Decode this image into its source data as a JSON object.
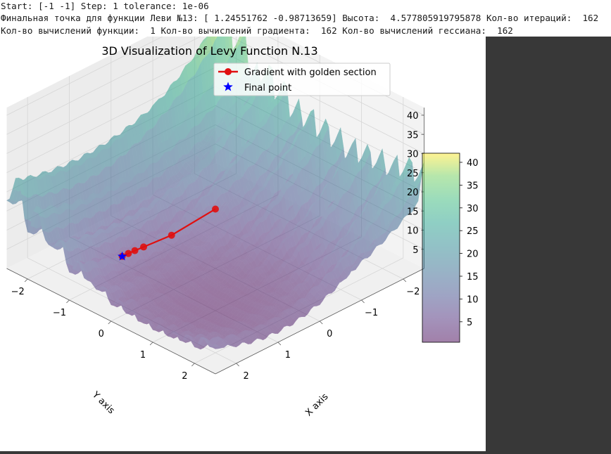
{
  "console": {
    "line1": "Start: [-1 -1] Step: 1 tolerance: 1e-06",
    "line2": "Финальная точка для функции Леви №13: [ 1.24551762 -0.98713659] Высота:  4.577805919795878 Кол-во итераций:  162",
    "line3": "Кол-во вычислений функции:  1 Кол-во вычислений градиента:  162 Кол-во вычислений гессиана:  162"
  },
  "chart_data": {
    "type": "surface3d",
    "title": "3D Visualization of Levy Function N.13",
    "xlabel": "X axis",
    "ylabel": "Y axis",
    "zlabel": "",
    "xlim": [
      -2.5,
      2.5
    ],
    "ylim": [
      -2.5,
      2.5
    ],
    "zlim": [
      0,
      42
    ],
    "x_ticks": [
      "−2",
      "−1",
      "0",
      "1",
      "2"
    ],
    "y_ticks": [
      "−2",
      "−1",
      "0",
      "1",
      "2"
    ],
    "z_ticks": [
      "5",
      "10",
      "15",
      "20",
      "25",
      "30",
      "35",
      "40"
    ],
    "colormap": "viridis",
    "surface_alpha": 0.5,
    "colorbar": {
      "ticks": [
        "5",
        "10",
        "15",
        "20",
        "25",
        "30",
        "35",
        "40"
      ],
      "range": [
        0.5,
        42
      ]
    },
    "legend": {
      "placement": "upper center",
      "entries": [
        {
          "label": "Gradient with golden section",
          "color": "#e01010",
          "marker": "circle"
        },
        {
          "label": "Final point",
          "color": "#0000ff",
          "marker": "star"
        }
      ]
    },
    "path": {
      "name": "Gradient with golden section",
      "color": "#e01010",
      "points": [
        {
          "x": -1.0,
          "y": -1.0,
          "z": 4.5
        },
        {
          "x": 0.1,
          "y": -0.95,
          "z": 4.0
        },
        {
          "x": 0.75,
          "y": -0.97,
          "z": 4.4
        },
        {
          "x": 0.95,
          "y": -0.98,
          "z": 4.5
        },
        {
          "x": 1.1,
          "y": -0.985,
          "z": 4.55
        },
        {
          "x": 1.2455,
          "y": -0.9871,
          "z": 4.5778
        }
      ]
    },
    "final_point": {
      "name": "Final point",
      "x": 1.24551762,
      "y": -0.98713659,
      "z": 4.577805919795878,
      "color": "#0000ff"
    }
  }
}
